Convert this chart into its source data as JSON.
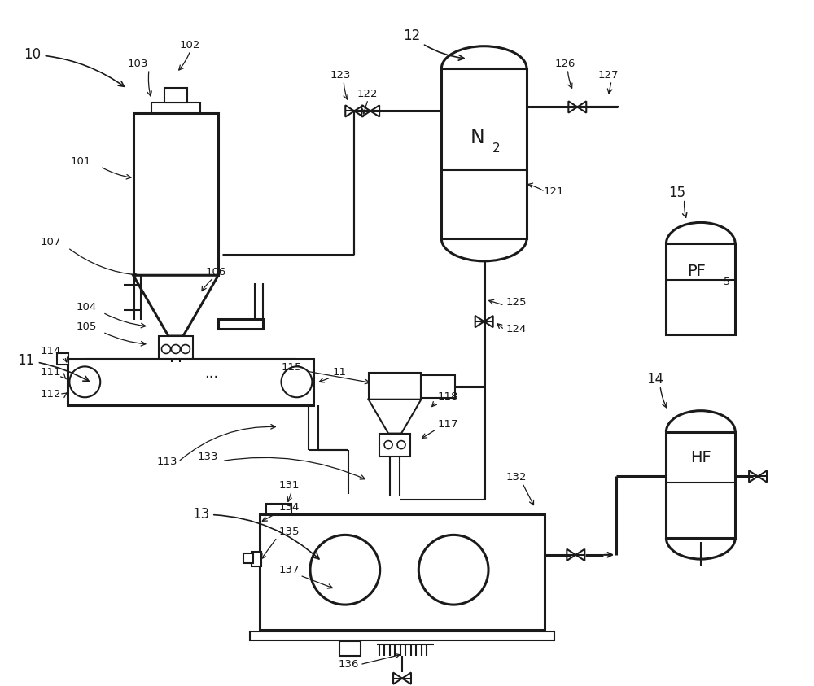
{
  "bg_color": "#ffffff",
  "lc": "#1a1a1a",
  "lw": 1.5,
  "lw2": 2.2,
  "fs": 11,
  "fs2": 9.5,
  "figsize": [
    10.0,
    8.43
  ],
  "xlim": [
    0,
    10
  ],
  "ylim": [
    0,
    8.43
  ]
}
